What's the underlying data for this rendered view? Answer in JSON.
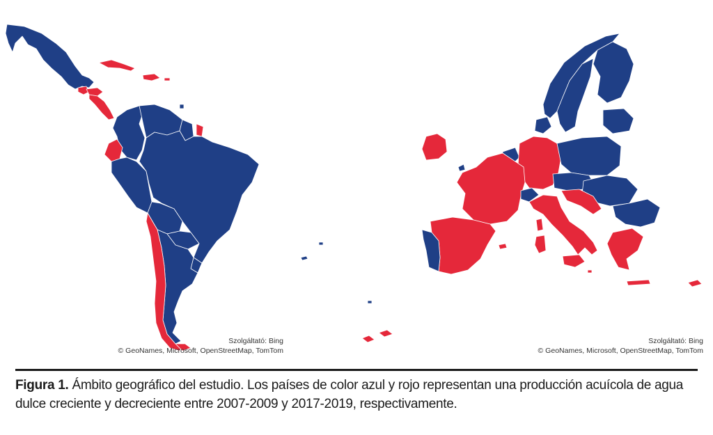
{
  "map": {
    "legend": {
      "increasing_color": "#1f3f86",
      "decreasing_color": "#e5283a"
    },
    "regions": [
      {
        "name": "Latin America",
        "countries": [
          {
            "country": "Mexico",
            "trend": "increasing"
          },
          {
            "country": "Guatemala",
            "trend": "decreasing"
          },
          {
            "country": "Honduras",
            "trend": "decreasing"
          },
          {
            "country": "Nicaragua",
            "trend": "decreasing"
          },
          {
            "country": "Cuba",
            "trend": "decreasing"
          },
          {
            "country": "Dominican Republic",
            "trend": "decreasing"
          },
          {
            "country": "Colombia",
            "trend": "increasing"
          },
          {
            "country": "Venezuela",
            "trend": "increasing"
          },
          {
            "country": "French Guiana",
            "trend": "decreasing"
          },
          {
            "country": "Ecuador",
            "trend": "decreasing"
          },
          {
            "country": "Peru",
            "trend": "increasing"
          },
          {
            "country": "Brazil",
            "trend": "increasing"
          },
          {
            "country": "Bolivia",
            "trend": "increasing"
          },
          {
            "country": "Chile",
            "trend": "decreasing"
          },
          {
            "country": "Argentina",
            "trend": "increasing"
          }
        ]
      },
      {
        "name": "Europe",
        "countries": [
          {
            "country": "Ireland",
            "trend": "decreasing"
          },
          {
            "country": "France",
            "trend": "decreasing"
          },
          {
            "country": "Spain",
            "trend": "decreasing"
          },
          {
            "country": "Portugal",
            "trend": "increasing"
          },
          {
            "country": "Germany",
            "trend": "decreasing"
          },
          {
            "country": "Italy",
            "trend": "decreasing"
          },
          {
            "country": "Greece",
            "trend": "decreasing"
          },
          {
            "country": "Croatia",
            "trend": "decreasing"
          },
          {
            "country": "Cyprus",
            "trend": "decreasing"
          },
          {
            "country": "Poland",
            "trend": "increasing"
          },
          {
            "country": "Sweden",
            "trend": "increasing"
          },
          {
            "country": "Finland",
            "trend": "increasing"
          },
          {
            "country": "Romania",
            "trend": "increasing"
          },
          {
            "country": "Bulgaria",
            "trend": "increasing"
          }
        ]
      }
    ],
    "attribution_left": {
      "provider": "Szolgáltató: Bing",
      "credits": "© GeoNames, Microsoft, OpenStreetMap, TomTom"
    },
    "attribution_right": {
      "provider": "Szolgáltató: Bing",
      "credits": "© GeoNames, Microsoft, OpenStreetMap, TomTom"
    }
  },
  "caption": {
    "label": "Figura 1.",
    "text": " Ámbito geográfico del estudio. Los países de color azul y rojo representan una producción acuícola de agua dulce creciente y decreciente entre 2007-2009 y 2017-2019, respectivamente."
  }
}
